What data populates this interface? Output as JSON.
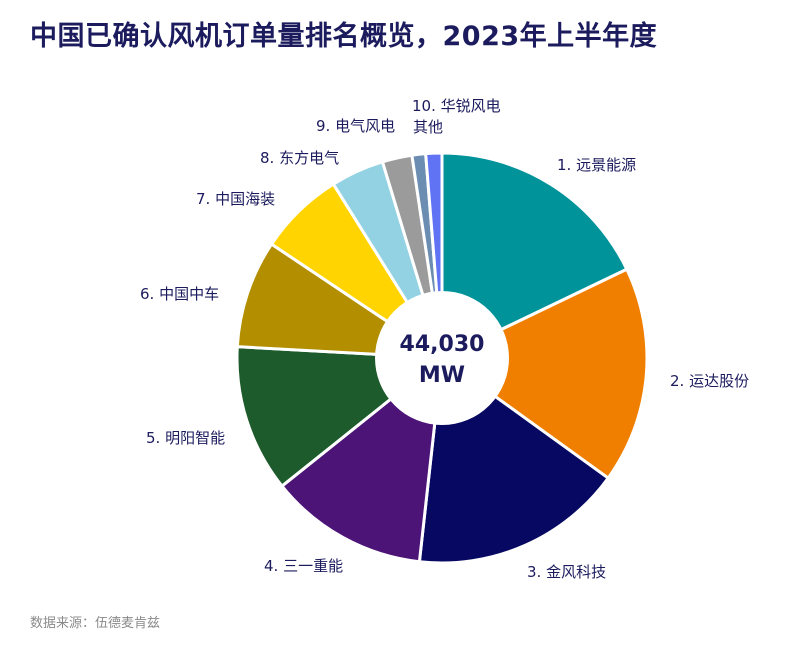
{
  "title": "中国已确认风机订单量排名概览，2023年上半年度",
  "source": "数据来源：伍德麦肯兹",
  "center_label": {
    "line1": "44,030",
    "line2": "MW"
  },
  "chart_data": {
    "type": "pie",
    "title": "中国已确认风机订单量排名概览，2023年上半年度",
    "total_label": "44,030 MW",
    "slices": [
      {
        "label": "1. 远景能源",
        "value": 18.3,
        "color": "#00939a"
      },
      {
        "label": "2. 运达股份",
        "value": 17.5,
        "color": "#f07f00"
      },
      {
        "label": "3. 金风科技",
        "value": 17.2,
        "color": "#060862"
      },
      {
        "label": "4. 三一重能",
        "value": 12.8,
        "color": "#4d1478"
      },
      {
        "label": "5. 明阳智能",
        "value": 11.9,
        "color": "#1d5a2c"
      },
      {
        "label": "6. 中国中车",
        "value": 8.7,
        "color": "#b38f00"
      },
      {
        "label": "7. 中国海装",
        "value": 6.9,
        "color": "#ffd400"
      },
      {
        "label": "8. 东方电气",
        "value": 4.3,
        "color": "#93d2e3"
      },
      {
        "label": "9. 电气风电",
        "value": 2.4,
        "color": "#9b9b9b"
      },
      {
        "label": "10. 华锐风电",
        "value": 1.1,
        "color": "#6c8db2"
      },
      {
        "label": "其他",
        "value": 1.3,
        "color": "#6073f5"
      }
    ]
  }
}
